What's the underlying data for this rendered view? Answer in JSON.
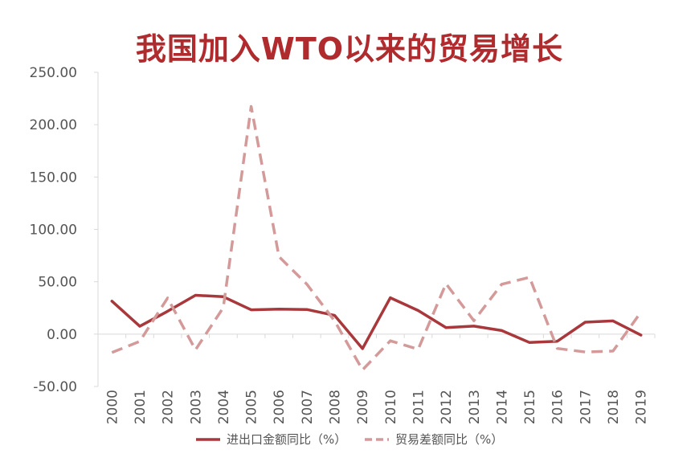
{
  "chart_data": {
    "type": "line",
    "title": "我国加入WTO以来的贸易增长",
    "x": [
      "2000",
      "2001",
      "2002",
      "2003",
      "2004",
      "2005",
      "2006",
      "2007",
      "2008",
      "2009",
      "2010",
      "2011",
      "2012",
      "2013",
      "2014",
      "2015",
      "2016",
      "2017",
      "2018",
      "2019"
    ],
    "ylim": [
      -50,
      250
    ],
    "yticks": [
      "250.00",
      "200.00",
      "150.00",
      "100.00",
      "50.00",
      "0.00",
      "-50.00"
    ],
    "ytick_values": [
      250,
      200,
      150,
      100,
      50,
      0,
      -50
    ],
    "grid": false,
    "legend_position": "bottom",
    "series": [
      {
        "name": "进出口金额同比（%）",
        "style": "solid",
        "color": "#a8383b",
        "values": [
          31.5,
          7.5,
          21.8,
          37.1,
          35.7,
          23.2,
          23.8,
          23.5,
          17.8,
          -13.9,
          34.7,
          22.5,
          6.2,
          7.6,
          3.4,
          -8.0,
          -6.8,
          11.4,
          12.6,
          -1.0
        ]
      },
      {
        "name": "贸易差额同比（%）",
        "style": "dashed",
        "color": "#d49a9a",
        "values": [
          -17.6,
          -6.9,
          34.5,
          -15.0,
          25.3,
          217.4,
          74.0,
          47.7,
          12.5,
          -34.2,
          -6.4,
          -14.5,
          48.1,
          12.8,
          47.6,
          54.2,
          -13.7,
          -17.1,
          -16.2,
          21.0
        ]
      }
    ]
  }
}
